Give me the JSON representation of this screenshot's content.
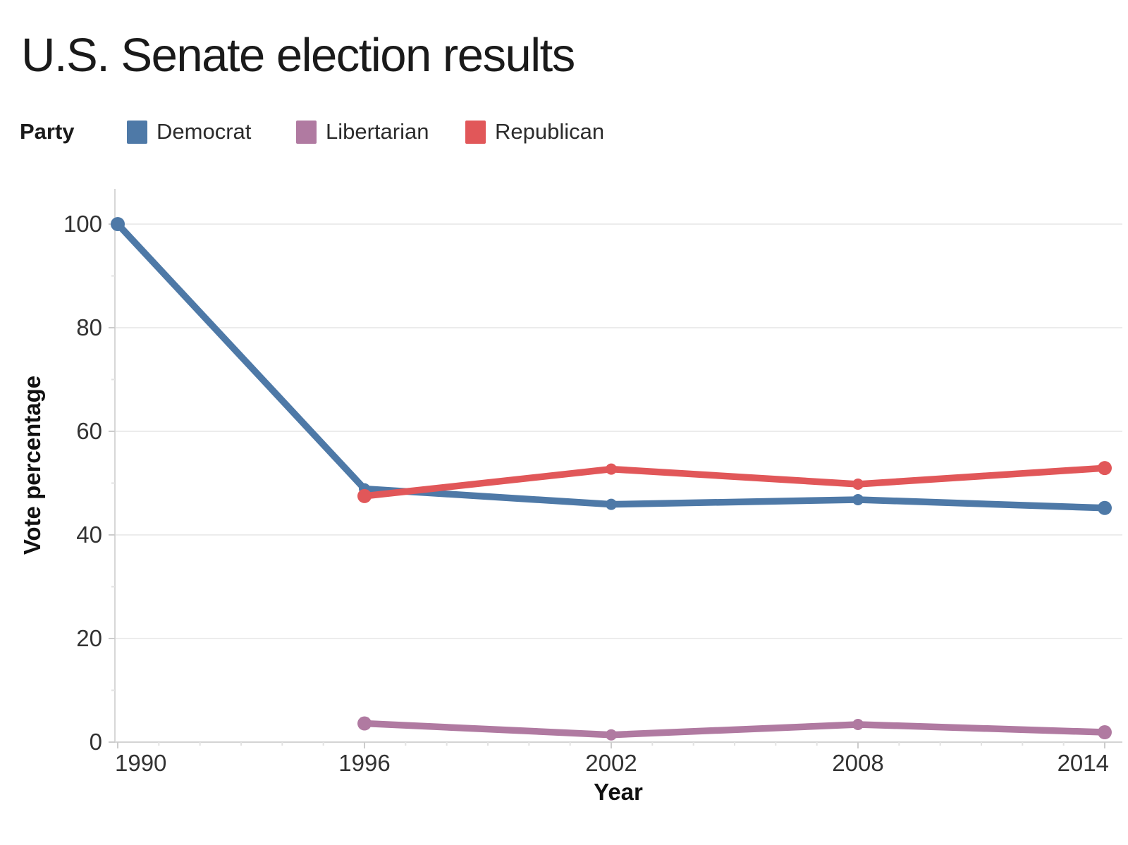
{
  "chart_data": {
    "type": "line",
    "title": "U.S. Senate election results",
    "legend_title": "Party",
    "legend_position": "top",
    "xlabel": "Year",
    "ylabel": "Vote percentage",
    "x": [
      1990,
      1996,
      2002,
      2008,
      2014
    ],
    "xticks": [
      "1990",
      "1996",
      "2002",
      "2008",
      "2014"
    ],
    "yticks": [
      0,
      20,
      40,
      60,
      80,
      100
    ],
    "ylim": [
      0,
      107
    ],
    "xlim": [
      1990,
      2014.4
    ],
    "grid": "horizontal",
    "series": [
      {
        "name": "Democrat",
        "color": "#4e79a7",
        "values": [
          100,
          48.9,
          45.9,
          46.8,
          45.2
        ]
      },
      {
        "name": "Libertarian",
        "color": "#b07aa1",
        "values": [
          null,
          3.6,
          1.4,
          3.4,
          1.9
        ]
      },
      {
        "name": "Republican",
        "color": "#e15759",
        "values": [
          null,
          47.5,
          52.7,
          49.8,
          52.9
        ]
      }
    ]
  }
}
